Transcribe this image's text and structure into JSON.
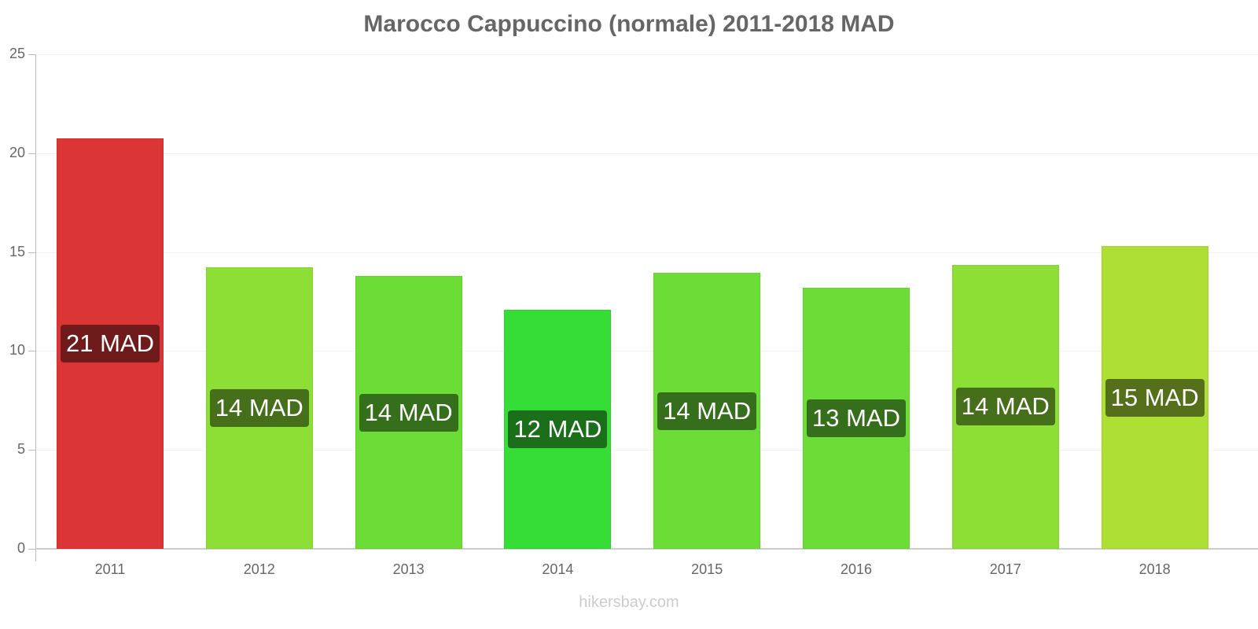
{
  "chart_data": {
    "type": "bar",
    "title": "Marocco Cappuccino (normale) 2011-2018 MAD",
    "xlabel": "",
    "ylabel": "",
    "ylim": [
      0,
      25
    ],
    "yticks": [
      0,
      5,
      10,
      15,
      20,
      25
    ],
    "grid": true,
    "legend": null,
    "categories": [
      "2011",
      "2012",
      "2013",
      "2014",
      "2015",
      "2016",
      "2017",
      "2018"
    ],
    "values": [
      20.75,
      14.23,
      13.79,
      12.08,
      13.95,
      13.2,
      14.35,
      15.3
    ],
    "data_labels": [
      "21 MAD",
      "14 MAD",
      "14 MAD",
      "12 MAD",
      "14 MAD",
      "13 MAD",
      "14 MAD",
      "15 MAD"
    ],
    "bar_colors": [
      "#dc3535",
      "#8ddf36",
      "#6cdd36",
      "#35dd36",
      "#6cdd36",
      "#6cdd36",
      "#8ddf36",
      "#addf34"
    ],
    "label_colors": [
      "#6f1b1b",
      "#466f1b",
      "#356f1b",
      "#1b6f1b",
      "#356f1b",
      "#356f1b",
      "#466f1b",
      "#566f1a"
    ],
    "watermark": "hikersbay.com"
  }
}
